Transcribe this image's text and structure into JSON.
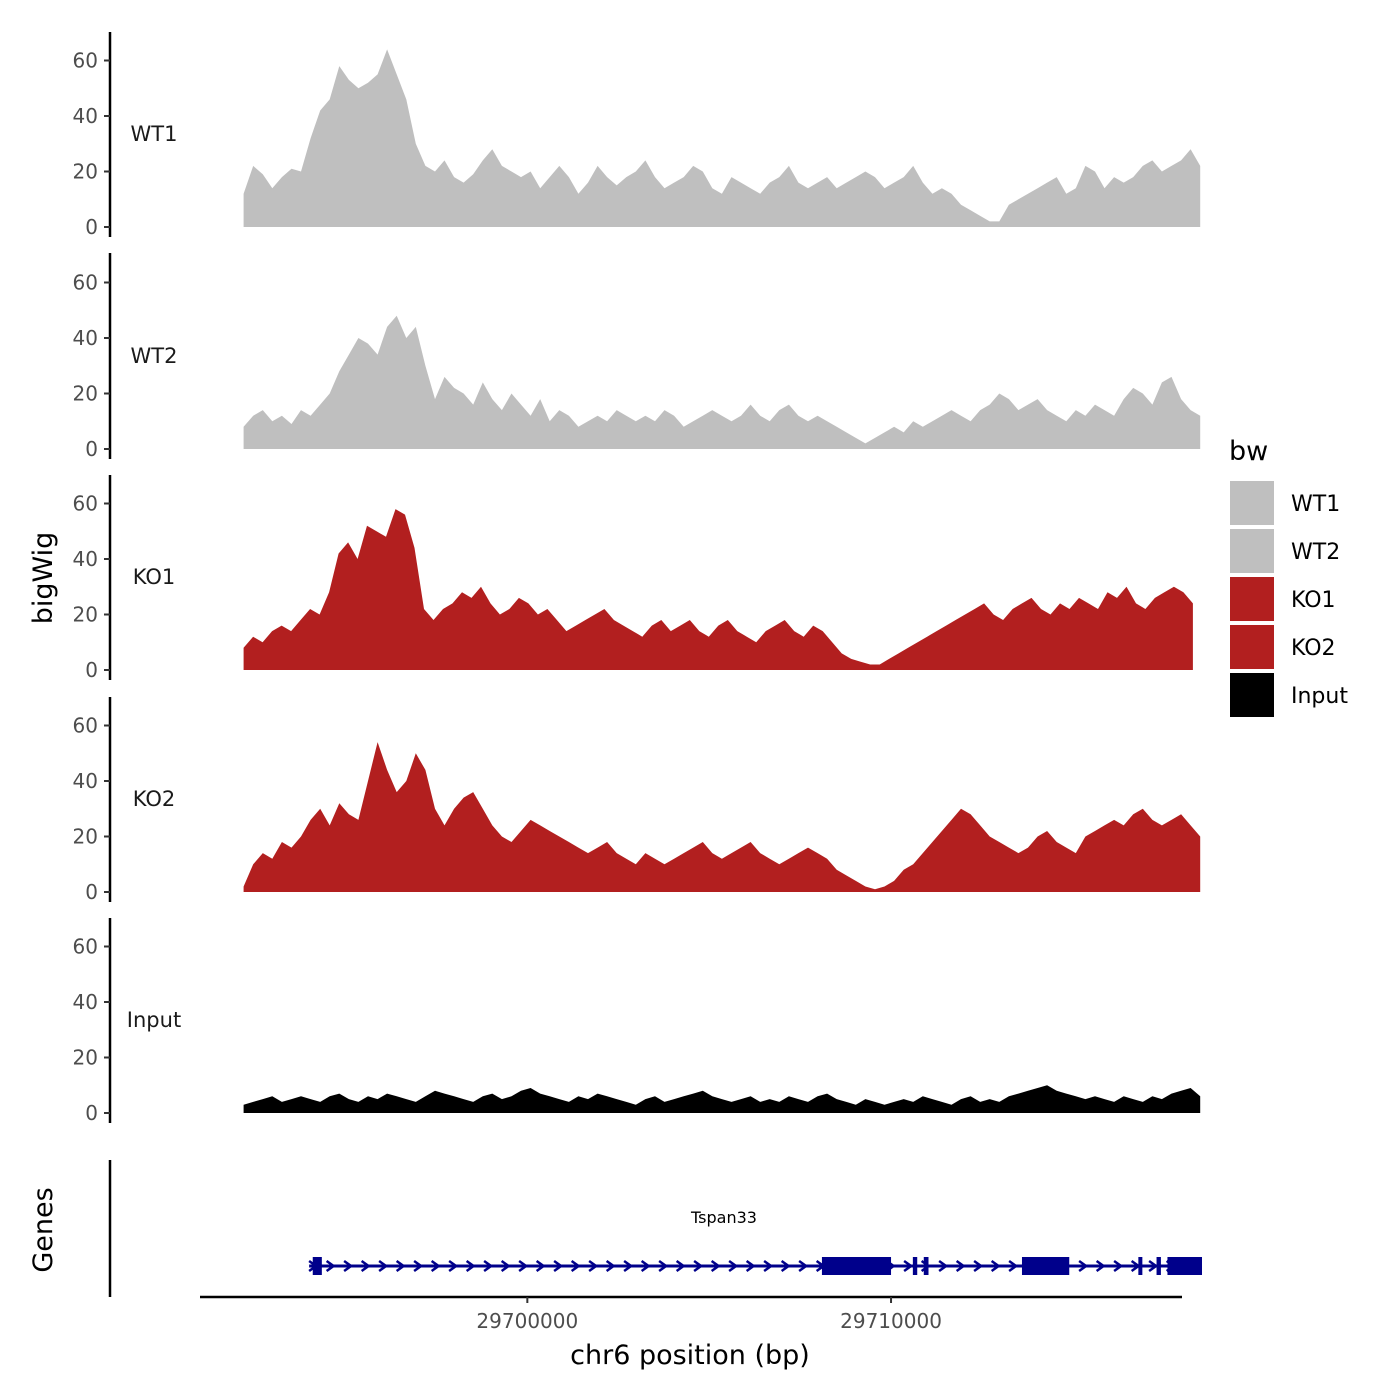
{
  "chart_data": {
    "type": "area",
    "ylabel": "bigWig",
    "xlabel": "chr6 position (bp)",
    "ylim": [
      0,
      70
    ],
    "yticks": [
      "0",
      "20",
      "40",
      "60"
    ],
    "xlim": [
      29691000,
      29718000
    ],
    "xticks": [
      {
        "value": 29700000,
        "label": "29700000"
      },
      {
        "value": 29710000,
        "label": "29710000"
      }
    ],
    "legend": {
      "title": "bw",
      "position": "right",
      "entries": [
        {
          "label": "WT1",
          "color": "#bfbfbf"
        },
        {
          "label": "WT2",
          "color": "#bfbfbf"
        },
        {
          "label": "KO1",
          "color": "#b21f1f"
        },
        {
          "label": "KO2",
          "color": "#b21f1f"
        },
        {
          "label": "Input",
          "color": "#000000"
        }
      ]
    },
    "series": [
      {
        "name": "WT1",
        "color": "#bfbfbf",
        "x_start": 29692200,
        "x_end": 29718500,
        "values": [
          12,
          22,
          19,
          14,
          18,
          21,
          20,
          32,
          42,
          46,
          58,
          53,
          50,
          52,
          55,
          64,
          55,
          46,
          30,
          22,
          20,
          24,
          18,
          16,
          19,
          24,
          28,
          22,
          20,
          18,
          20,
          14,
          18,
          22,
          18,
          12,
          16,
          22,
          18,
          15,
          18,
          20,
          24,
          18,
          14,
          16,
          18,
          22,
          20,
          14,
          12,
          18,
          16,
          14,
          12,
          16,
          18,
          22,
          16,
          14,
          16,
          18,
          14,
          16,
          18,
          20,
          18,
          14,
          16,
          18,
          22,
          16,
          12,
          14,
          12,
          8,
          6,
          4,
          2,
          2,
          8,
          10,
          12,
          14,
          16,
          18,
          12,
          14,
          22,
          20,
          14,
          18,
          16,
          18,
          22,
          24,
          20,
          22,
          24,
          28,
          22
        ]
      },
      {
        "name": "WT2",
        "color": "#bfbfbf",
        "x_start": 29692200,
        "x_end": 29718500,
        "values": [
          8,
          12,
          14,
          10,
          12,
          9,
          14,
          12,
          16,
          20,
          28,
          34,
          40,
          38,
          34,
          44,
          48,
          40,
          44,
          30,
          18,
          26,
          22,
          20,
          16,
          24,
          18,
          14,
          20,
          16,
          12,
          18,
          10,
          14,
          12,
          8,
          10,
          12,
          10,
          14,
          12,
          10,
          12,
          10,
          14,
          12,
          8,
          10,
          12,
          14,
          12,
          10,
          12,
          16,
          12,
          10,
          14,
          16,
          12,
          10,
          12,
          10,
          8,
          6,
          4,
          2,
          4,
          6,
          8,
          6,
          10,
          8,
          10,
          12,
          14,
          12,
          10,
          14,
          16,
          20,
          18,
          14,
          16,
          18,
          14,
          12,
          10,
          14,
          12,
          16,
          14,
          12,
          18,
          22,
          20,
          16,
          24,
          26,
          18,
          14,
          12
        ]
      },
      {
        "name": "KO1",
        "color": "#b21f1f",
        "x_start": 29692200,
        "x_end": 29718300,
        "values": [
          8,
          12,
          10,
          14,
          16,
          14,
          18,
          22,
          20,
          28,
          42,
          46,
          40,
          52,
          50,
          48,
          58,
          56,
          44,
          22,
          18,
          22,
          24,
          28,
          26,
          30,
          24,
          20,
          22,
          26,
          24,
          20,
          22,
          18,
          14,
          16,
          18,
          20,
          22,
          18,
          16,
          14,
          12,
          16,
          18,
          14,
          16,
          18,
          14,
          12,
          16,
          18,
          14,
          12,
          10,
          14,
          16,
          18,
          14,
          12,
          16,
          14,
          10,
          6,
          4,
          3,
          2,
          2,
          4,
          6,
          8,
          10,
          12,
          14,
          16,
          18,
          20,
          22,
          24,
          20,
          18,
          22,
          24,
          26,
          22,
          20,
          24,
          22,
          26,
          24,
          22,
          28,
          26,
          30,
          24,
          22,
          26,
          28,
          30,
          28,
          24
        ]
      },
      {
        "name": "KO2",
        "color": "#b21f1f",
        "x_start": 29692200,
        "x_end": 29718500,
        "values": [
          2,
          10,
          14,
          12,
          18,
          16,
          20,
          26,
          30,
          24,
          32,
          28,
          26,
          40,
          54,
          44,
          36,
          40,
          50,
          44,
          30,
          24,
          30,
          34,
          36,
          30,
          24,
          20,
          18,
          22,
          26,
          24,
          22,
          20,
          18,
          16,
          14,
          16,
          18,
          14,
          12,
          10,
          14,
          12,
          10,
          12,
          14,
          16,
          18,
          14,
          12,
          14,
          16,
          18,
          14,
          12,
          10,
          12,
          14,
          16,
          14,
          12,
          8,
          6,
          4,
          2,
          1,
          2,
          4,
          8,
          10,
          14,
          18,
          22,
          26,
          30,
          28,
          24,
          20,
          18,
          16,
          14,
          16,
          20,
          22,
          18,
          16,
          14,
          20,
          22,
          24,
          26,
          24,
          28,
          30,
          26,
          24,
          26,
          28,
          24,
          20
        ]
      },
      {
        "name": "Input",
        "color": "#000000",
        "x_start": 29692200,
        "x_end": 29718500,
        "values": [
          3,
          4,
          5,
          6,
          4,
          5,
          6,
          5,
          4,
          6,
          7,
          5,
          4,
          6,
          5,
          7,
          6,
          5,
          4,
          6,
          8,
          7,
          6,
          5,
          4,
          6,
          7,
          5,
          6,
          8,
          9,
          7,
          6,
          5,
          4,
          6,
          5,
          7,
          6,
          5,
          4,
          3,
          5,
          6,
          4,
          5,
          6,
          7,
          8,
          6,
          5,
          4,
          5,
          6,
          4,
          5,
          4,
          6,
          5,
          4,
          6,
          7,
          5,
          4,
          3,
          5,
          4,
          3,
          4,
          5,
          4,
          6,
          5,
          4,
          3,
          5,
          6,
          4,
          5,
          4,
          6,
          7,
          8,
          9,
          10,
          8,
          7,
          6,
          5,
          6,
          5,
          4,
          6,
          5,
          4,
          6,
          5,
          7,
          8,
          9,
          6
        ]
      }
    ],
    "tracks_labels": [
      "WT1",
      "WT2",
      "KO1",
      "KO2",
      "Input"
    ],
    "genes_panel": {
      "ylabel": "Genes",
      "gene": {
        "name": "Tspan33",
        "strand": "+",
        "color": "#00008b",
        "start": 29694000,
        "end": 29718500,
        "exons": [
          [
            29694100,
            29694350
          ],
          [
            29708100,
            29710000
          ],
          [
            29710600,
            29710720
          ],
          [
            29710900,
            29711030
          ],
          [
            29713600,
            29714900
          ],
          [
            29716800,
            29716900
          ],
          [
            29717300,
            29717420
          ],
          [
            29717600,
            29718550
          ]
        ]
      }
    }
  }
}
